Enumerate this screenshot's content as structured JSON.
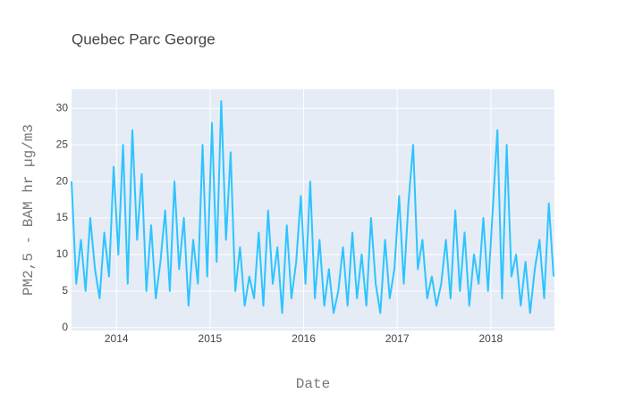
{
  "chart_data": {
    "type": "line",
    "title": "Quebec Parc George",
    "xlabel": "Date",
    "ylabel": "PM2,5 - BAM hr µg/m3",
    "color": "#2ec4ff",
    "x": [
      2013.52,
      2013.57,
      2013.62,
      2013.67,
      2013.72,
      2013.77,
      2013.82,
      2013.87,
      2013.92,
      2013.97,
      2014.02,
      2014.07,
      2014.12,
      2014.17,
      2014.22,
      2014.27,
      2014.32,
      2014.37,
      2014.42,
      2014.47,
      2014.52,
      2014.57,
      2014.62,
      2014.67,
      2014.72,
      2014.77,
      2014.82,
      2014.87,
      2014.92,
      2014.97,
      2015.02,
      2015.07,
      2015.12,
      2015.17,
      2015.22,
      2015.27,
      2015.32,
      2015.37,
      2015.42,
      2015.47,
      2015.52,
      2015.57,
      2015.62,
      2015.67,
      2015.72,
      2015.77,
      2015.82,
      2015.87,
      2015.92,
      2015.97,
      2016.02,
      2016.07,
      2016.12,
      2016.17,
      2016.22,
      2016.27,
      2016.32,
      2016.37,
      2016.42,
      2016.47,
      2016.52,
      2016.57,
      2016.62,
      2016.67,
      2016.72,
      2016.77,
      2016.82,
      2016.87,
      2016.92,
      2016.97,
      2017.02,
      2017.07,
      2017.12,
      2017.17,
      2017.22,
      2017.27,
      2017.32,
      2017.37,
      2017.42,
      2017.47,
      2017.52,
      2017.57,
      2017.62,
      2017.67,
      2017.72,
      2017.77,
      2017.82,
      2017.87,
      2017.92,
      2017.97,
      2018.02,
      2018.07,
      2018.12,
      2018.17,
      2018.22,
      2018.27,
      2018.32,
      2018.37,
      2018.42,
      2018.47,
      2018.52,
      2018.57,
      2018.62,
      2018.67
    ],
    "values": [
      20,
      6,
      12,
      5,
      15,
      8,
      4,
      13,
      7,
      22,
      10,
      25,
      6,
      27,
      12,
      21,
      5,
      14,
      4,
      9,
      16,
      5,
      20,
      8,
      15,
      3,
      12,
      6,
      25,
      7,
      28,
      9,
      31,
      12,
      24,
      5,
      11,
      3,
      7,
      4,
      13,
      3,
      16,
      6,
      11,
      2,
      14,
      4,
      9,
      18,
      6,
      20,
      4,
      12,
      3,
      8,
      2,
      5,
      11,
      3,
      13,
      4,
      10,
      3,
      15,
      6,
      2,
      12,
      4,
      8,
      18,
      6,
      17,
      25,
      8,
      12,
      4,
      7,
      3,
      6,
      12,
      4,
      16,
      5,
      13,
      3,
      10,
      6,
      15,
      5,
      16,
      27,
      4,
      25,
      7,
      10,
      3,
      9,
      2,
      8,
      12,
      4,
      17,
      7
    ],
    "xlim": [
      2013.52,
      2018.68
    ],
    "xticks": [
      2014,
      2015,
      2016,
      2017,
      2018
    ],
    "ylim": [
      -0.4,
      32.6
    ],
    "yticks": [
      0,
      5,
      10,
      15,
      20,
      25,
      30
    ],
    "grid": true
  }
}
